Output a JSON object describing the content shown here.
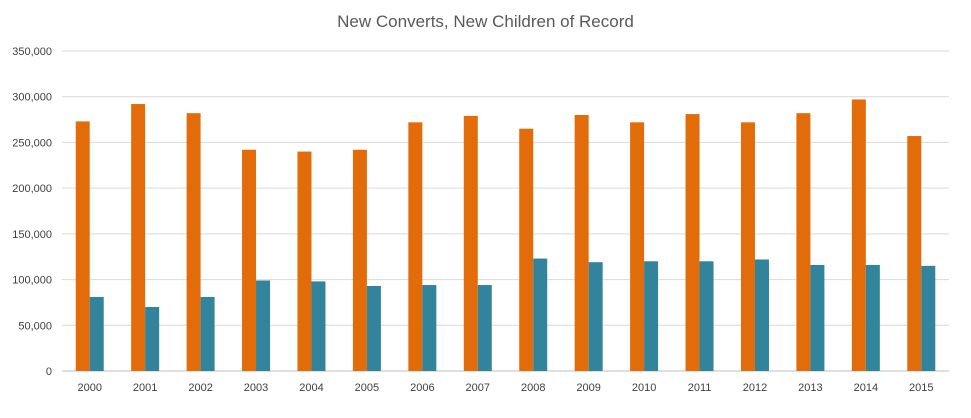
{
  "chart_data": {
    "type": "bar",
    "title": "New Converts, New Children of Record",
    "xlabel": "",
    "ylabel": "",
    "categories": [
      "2000",
      "2001",
      "2002",
      "2003",
      "2004",
      "2005",
      "2006",
      "2007",
      "2008",
      "2009",
      "2010",
      "2011",
      "2012",
      "2013",
      "2014",
      "2015"
    ],
    "series": [
      {
        "color": "#e36c0a",
        "values": [
          273000,
          292000,
          282000,
          242000,
          240000,
          242000,
          272000,
          279000,
          265000,
          280000,
          272000,
          281000,
          272000,
          282000,
          297000,
          257000
        ]
      },
      {
        "color": "#31849b",
        "values": [
          81000,
          70000,
          81000,
          99000,
          98000,
          93000,
          94000,
          94000,
          123000,
          119000,
          120000,
          120000,
          122000,
          116000,
          116000,
          115000
        ]
      }
    ],
    "ylim": [
      0,
      350000
    ],
    "yticks": [
      0,
      50000,
      100000,
      150000,
      200000,
      250000,
      300000,
      350000
    ],
    "ytick_labels": [
      "0",
      "50,000",
      "100,000",
      "150,000",
      "200,000",
      "250,000",
      "300,000",
      "350,000"
    ],
    "grid": true,
    "legend": "none"
  }
}
